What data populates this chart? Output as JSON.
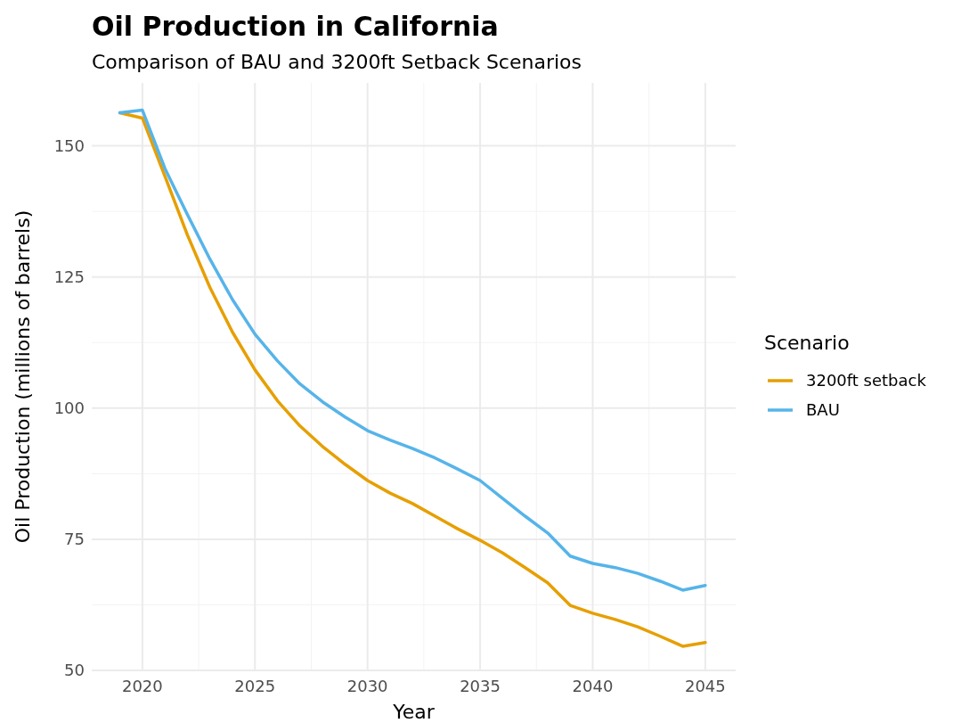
{
  "chart_data": {
    "type": "line",
    "title": "Oil Production in California",
    "subtitle": "Comparison of BAU and 3200ft Setback Scenarios",
    "xlabel": "Year",
    "ylabel": "Oil Production (millions of barrels)",
    "legend_title": "Scenario",
    "x": [
      2019,
      2020,
      2021,
      2022,
      2023,
      2024,
      2025,
      2026,
      2027,
      2028,
      2029,
      2030,
      2031,
      2032,
      2033,
      2034,
      2035,
      2036,
      2037,
      2038,
      2039,
      2040,
      2041,
      2042,
      2043,
      2044,
      2045
    ],
    "series": [
      {
        "name": "3200ft setback",
        "color": "#e69f00",
        "values": [
          156.3,
          155.3,
          144.2,
          133.0,
          123.0,
          114.5,
          107.3,
          101.4,
          96.6,
          92.7,
          89.3,
          86.2,
          83.8,
          81.8,
          79.4,
          77.0,
          74.8,
          72.4,
          69.6,
          66.7,
          62.4,
          60.9,
          59.7,
          58.3,
          56.5,
          54.6,
          55.3
        ]
      },
      {
        "name": "BAU",
        "color": "#56b4e9",
        "values": [
          156.3,
          156.8,
          145.7,
          136.9,
          128.4,
          120.7,
          114.1,
          109.0,
          104.6,
          101.2,
          98.3,
          95.7,
          93.9,
          92.3,
          90.5,
          88.4,
          86.2,
          82.8,
          79.4,
          76.2,
          71.8,
          70.4,
          69.6,
          68.5,
          67.0,
          65.3,
          66.2
        ]
      }
    ],
    "xlim": [
      2017.75,
      2046.35
    ],
    "ylim": [
      50,
      162
    ],
    "xticks": [
      2020,
      2025,
      2030,
      2035,
      2040,
      2045
    ],
    "yticks": [
      50,
      75,
      100,
      125,
      150
    ],
    "grid": true,
    "legend": "right",
    "line_style": "solid",
    "marker": "none"
  }
}
